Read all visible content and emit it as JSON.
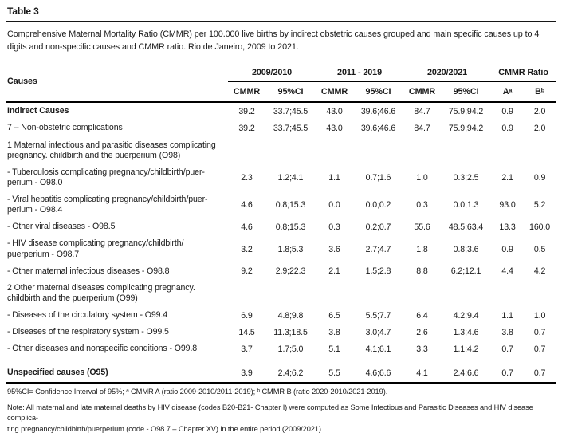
{
  "table_number": "Table 3",
  "caption": "Comprehensive Maternal Mortality Ratio (CMMR) per 100.000 live births by indirect obstetric causes grouped and main specific causes up to 4 digits and non-specific causes and CMMR ratio. Rio de Janeiro, 2009 to 2021.",
  "table": {
    "header": {
      "causes": "Causes",
      "groups": [
        "2009/2010",
        "2011 - 2019",
        "2020/2021",
        "CMMR Ratio"
      ],
      "sub": [
        "CMMR",
        "95%CI",
        "CMMR",
        "95%CI",
        "CMMR",
        "95%CI",
        "Aᵃ",
        "Bᵇ"
      ]
    },
    "rows": [
      {
        "label": "Indirect Causes",
        "bold": true,
        "values": [
          "39.2",
          "33.7;45.5",
          "43.0",
          "39.6;46.6",
          "84.7",
          "75.9;94.2",
          "0.9",
          "2.0"
        ]
      },
      {
        "label": "7 – Non-obstetric complications",
        "bold": false,
        "values": [
          "39.2",
          "33.7;45.5",
          "43.0",
          "39.6;46.6",
          "84.7",
          "75.9;94.2",
          "0.9",
          "2.0"
        ]
      },
      {
        "label": "1 Maternal infectious and parasitic diseases complicating\npregnancy. childbirth and the puerperium (O98)",
        "bold": false,
        "values": []
      },
      {
        "label": "- Tuberculosis complicating pregnancy/childbirth/puer-\nperium - O98.0",
        "bold": false,
        "values": [
          "2.3",
          "1.2;4.1",
          "1.1",
          "0.7;1.6",
          "1.0",
          "0.3;2.5",
          "2.1",
          "0.9"
        ]
      },
      {
        "label": "- Viral hepatitis complicating pregnancy/childbirth/puer-\nperium - O98.4",
        "bold": false,
        "values": [
          "4.6",
          "0.8;15.3",
          "0.0",
          "0.0;0.2",
          "0.3",
          "0.0;1.3",
          "93.0",
          "5.2"
        ]
      },
      {
        "label": "- Other viral diseases - O98.5",
        "bold": false,
        "values": [
          "4.6",
          "0.8;15.3",
          "0.3",
          "0.2;0.7",
          "55.6",
          "48.5;63.4",
          "13.3",
          "160.0"
        ]
      },
      {
        "label": "- HIV disease complicating pregnancy/childbirth/\npuerperium - O98.7",
        "bold": false,
        "values": [
          "3.2",
          "1.8;5.3",
          "3.6",
          "2.7;4.7",
          "1.8",
          "0.8;3.6",
          "0.9",
          "0.5"
        ]
      },
      {
        "label": "- Other maternal infectious diseases - O98.8",
        "bold": false,
        "values": [
          "9.2",
          "2.9;22.3",
          "2.1",
          "1.5;2.8",
          "8.8",
          "6.2;12.1",
          "4.4",
          "4.2"
        ]
      },
      {
        "label": "2 Other maternal diseases complicating pregnancy.\nchildbirth and the puerperium (O99)",
        "bold": false,
        "values": []
      },
      {
        "label": "- Diseases of the circulatory system - O99.4",
        "bold": false,
        "values": [
          "6.9",
          "4.8;9.8",
          "6.5",
          "5.5;7.7",
          "6.4",
          "4.2;9.4",
          "1.1",
          "1.0"
        ]
      },
      {
        "label": "- Diseases of the respiratory system - O99.5",
        "bold": false,
        "values": [
          "14.5",
          "11.3;18.5",
          "3.8",
          "3.0;4.7",
          "2.6",
          "1.3;4.6",
          "3.8",
          "0.7"
        ]
      },
      {
        "label": "- Other diseases and nonspecific conditions - O99.8",
        "bold": false,
        "values": [
          "3.7",
          "1.7;5.0",
          "5.1",
          "4.1;6.1",
          "3.3",
          "1.1;4.2",
          "0.7",
          "0.7"
        ]
      },
      {
        "spacer": true
      },
      {
        "label": "Unspecified causes (O95)",
        "bold": true,
        "values": [
          "3.9",
          "2.4;6.2",
          "5.5",
          "4.6;6.6",
          "4.1",
          "2.4;6.6",
          "0.7",
          "0.7"
        ]
      }
    ]
  },
  "footnote": "95%CI= Confidence Interval of 95%; ᵃ CMMR A (ratio 2009-2010/2011-2019); ᵇ CMMR B (ratio 2020-2010/2021-2019).",
  "note": "Note: All maternal and late maternal deaths by HIV disease (codes B20-B21- Chapter I) were computed as Some Infectious and Parasitic Diseases and HIV disease complica-\nting pregnancy/childbirth/puerperium (code - O98.7 – Chapter XV) in the entire period (2009/2021)."
}
